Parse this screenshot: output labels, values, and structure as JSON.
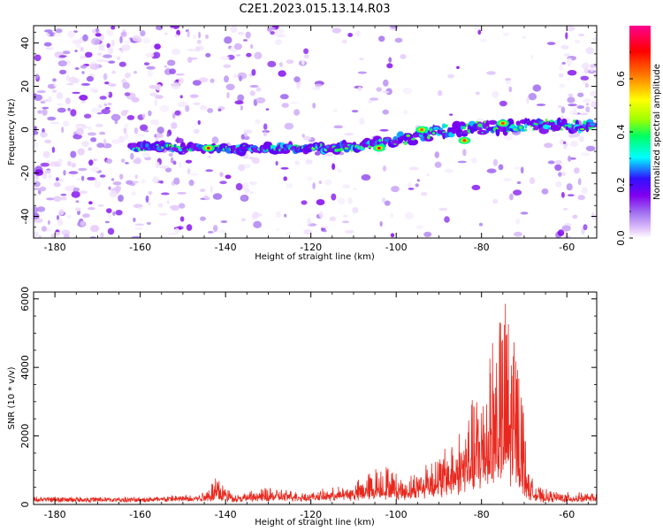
{
  "title": "C2E1.2023.015.13.14.R03",
  "chart_data": [
    {
      "type": "heatmap",
      "xlabel": "Height of straight line (km)",
      "ylabel": "Frequency (Hz)",
      "xlim": [
        -185,
        -53
      ],
      "ylim": [
        -50,
        48
      ],
      "xticks": [
        -180,
        -160,
        -140,
        -120,
        -100,
        -80,
        -60
      ],
      "yticks": [
        -40,
        -20,
        0,
        20,
        40
      ],
      "colorbar": {
        "label": "Normalized spectral amplitude",
        "ticks": [
          0.0,
          0.2,
          0.4,
          0.6
        ],
        "range": [
          0,
          0.8
        ],
        "colormap": [
          "#ffffff",
          "#e4c8fb",
          "#a070f0",
          "#8000f0",
          "#3010ff",
          "#00ffff",
          "#00ff60",
          "#a0ff00",
          "#ffff00",
          "#ff8000",
          "#ff0000",
          "#ff0090"
        ]
      },
      "ridge": {
        "description_points": [
          [
            -162,
            -8
          ],
          [
            -150,
            -8.5
          ],
          [
            -140,
            -9
          ],
          [
            -130,
            -8.5
          ],
          [
            -120,
            -8.5
          ],
          [
            -110,
            -8
          ],
          [
            -100,
            -5
          ],
          [
            -90,
            -1
          ],
          [
            -80,
            1
          ],
          [
            -70,
            2
          ],
          [
            -60,
            2
          ],
          [
            -54,
            2
          ]
        ]
      },
      "hotspots": [
        {
          "x": -144,
          "y": -8.5,
          "v": 0.62
        },
        {
          "x": -104,
          "y": -8.5,
          "v": 0.62
        },
        {
          "x": -94,
          "y": 0,
          "v": 0.58
        },
        {
          "x": -84,
          "y": -5,
          "v": 0.6
        },
        {
          "x": -75,
          "y": 3,
          "v": 0.6
        }
      ]
    },
    {
      "type": "line",
      "xlabel": "Height of straight line (km)",
      "ylabel": "SNR (10 * v/v)",
      "xlim": [
        -185,
        -53
      ],
      "ylim": [
        0,
        6200
      ],
      "xticks": [
        -180,
        -160,
        -140,
        -120,
        -100,
        -80,
        -60
      ],
      "yticks": [
        0,
        2000,
        4000,
        6000
      ],
      "color": "#e8281e",
      "envelope": [
        {
          "x": -185,
          "base": 150,
          "peak": 220
        },
        {
          "x": -160,
          "base": 150,
          "peak": 200
        },
        {
          "x": -146,
          "base": 170,
          "peak": 300
        },
        {
          "x": -142,
          "base": 200,
          "peak": 900
        },
        {
          "x": -138,
          "base": 160,
          "peak": 280
        },
        {
          "x": -130,
          "base": 180,
          "peak": 500
        },
        {
          "x": -120,
          "base": 200,
          "peak": 350
        },
        {
          "x": -110,
          "base": 240,
          "peak": 600
        },
        {
          "x": -103,
          "base": 300,
          "peak": 1300
        },
        {
          "x": -98,
          "base": 300,
          "peak": 700
        },
        {
          "x": -92,
          "base": 400,
          "peak": 1400
        },
        {
          "x": -88,
          "base": 500,
          "peak": 1700
        },
        {
          "x": -84,
          "base": 700,
          "peak": 2500
        },
        {
          "x": -80,
          "base": 900,
          "peak": 3800
        },
        {
          "x": -77,
          "base": 1000,
          "peak": 5600
        },
        {
          "x": -74,
          "base": 1000,
          "peak": 6200
        },
        {
          "x": -71,
          "base": 900,
          "peak": 4700
        },
        {
          "x": -69,
          "base": 300,
          "peak": 900
        },
        {
          "x": -66,
          "base": 150,
          "peak": 450
        },
        {
          "x": -60,
          "base": 140,
          "peak": 350
        },
        {
          "x": -53,
          "base": 150,
          "peak": 330
        }
      ]
    }
  ]
}
